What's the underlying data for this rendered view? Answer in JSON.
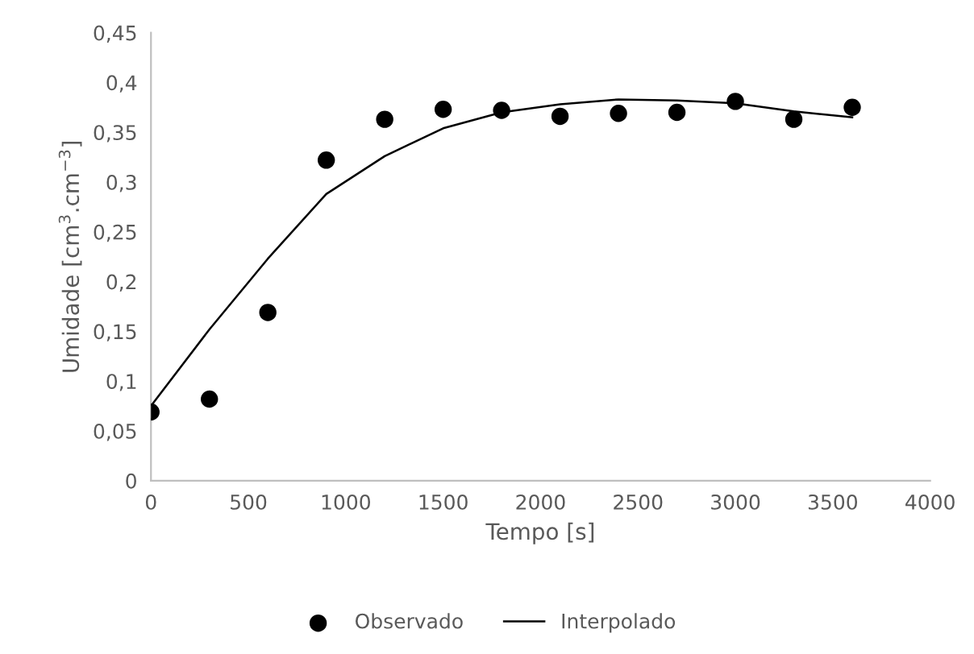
{
  "chart_data": {
    "type": "scatter",
    "xlabel": "Tempo [s]",
    "ylabel": "Umidade [cm$^{3}$.cm$^{−3}$]",
    "x": [
      0,
      300,
      600,
      900,
      1200,
      1500,
      1800,
      2100,
      2400,
      2700,
      3000,
      3300,
      3600
    ],
    "xlim": [
      0,
      4000
    ],
    "xticks": [
      0,
      500,
      1000,
      1500,
      2000,
      2500,
      3000,
      3500,
      4000
    ],
    "ylim": [
      0,
      0.45
    ],
    "yticks": [
      {
        "value": 0,
        "label": "0"
      },
      {
        "value": 0.05,
        "label": "0,05"
      },
      {
        "value": 0.1,
        "label": "0,1"
      },
      {
        "value": 0.15,
        "label": "0,15"
      },
      {
        "value": 0.2,
        "label": "0,2"
      },
      {
        "value": 0.25,
        "label": "0,25"
      },
      {
        "value": 0.3,
        "label": "0,3"
      },
      {
        "value": 0.35,
        "label": "0,35"
      },
      {
        "value": 0.4,
        "label": "0,4"
      },
      {
        "value": 0.45,
        "label": "0,45"
      }
    ],
    "grid": false,
    "legend": "bottom",
    "series": [
      {
        "name": "Observado",
        "marker": "circle",
        "color": "#000000",
        "values": [
          0.069,
          0.082,
          0.169,
          0.322,
          0.363,
          0.373,
          0.372,
          0.366,
          0.369,
          0.37,
          0.381,
          0.363,
          0.375
        ]
      },
      {
        "name": "Interpolado",
        "type": "line",
        "marker": "none",
        "color": "#000000",
        "x": [
          0,
          300,
          600,
          900,
          1200,
          1500,
          1800,
          2100,
          2400,
          2700,
          3000,
          3300,
          3600
        ],
        "values": [
          0.075,
          0.152,
          0.223,
          0.288,
          0.326,
          0.354,
          0.37,
          0.378,
          0.383,
          0.382,
          0.379,
          0.371,
          0.365
        ]
      }
    ]
  }
}
